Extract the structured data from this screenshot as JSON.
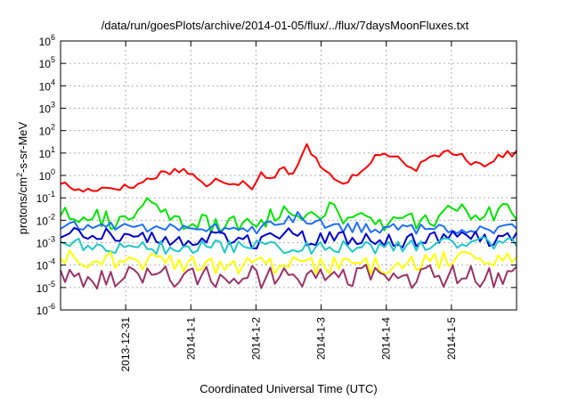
{
  "chart_data": {
    "type": "line",
    "title": "/data/run/goesPlots/archive/2014-01-05/flux/../flux/7daysMoonFluxes.txt",
    "xlabel": "Coordinated Universal Time (UTC)",
    "ylabel": "protons/cm2-s-sr-MeV",
    "ylabel_parts": {
      "pre": "protons/cm",
      "sup": "2",
      "post": "-s-sr-MeV"
    },
    "yscale": "log",
    "ylim_exp": [
      -6,
      6
    ],
    "y_tick_exponents": [
      -6,
      -5,
      -4,
      -3,
      -2,
      -1,
      0,
      1,
      2,
      3,
      4,
      5,
      6
    ],
    "y_tick_base": "10",
    "xlim_days": [
      0,
      7
    ],
    "x_ticks": [
      {
        "label": "2013-12-31",
        "day": 1
      },
      {
        "label": "2014-1-1",
        "day": 2
      },
      {
        "label": "2014-1-2",
        "day": 3
      },
      {
        "label": "2014-1-3",
        "day": 4
      },
      {
        "label": "2014-1-4",
        "day": 5
      },
      {
        "label": "2014-1-5",
        "day": 6
      }
    ],
    "grid": true,
    "series": [
      {
        "color": "#ff0000",
        "style": "spiky",
        "anchors": [
          [
            0,
            0.5
          ],
          [
            0.15,
            0.3
          ],
          [
            0.3,
            0.2
          ],
          [
            0.5,
            0.25
          ],
          [
            0.8,
            0.3
          ],
          [
            1.1,
            0.3
          ],
          [
            1.4,
            0.8
          ],
          [
            1.6,
            1.5
          ],
          [
            1.9,
            1.8
          ],
          [
            2.1,
            0.8
          ],
          [
            2.25,
            0.25
          ],
          [
            2.4,
            0.7
          ],
          [
            2.6,
            0.5
          ],
          [
            2.85,
            0.5
          ],
          [
            2.95,
            0.3
          ],
          [
            3.1,
            2
          ],
          [
            3.2,
            0.5
          ],
          [
            3.4,
            3
          ],
          [
            3.55,
            0.8
          ],
          [
            3.7,
            5
          ],
          [
            3.75,
            40
          ],
          [
            3.85,
            8
          ],
          [
            4,
            3
          ],
          [
            4.1,
            1.5
          ],
          [
            4.3,
            0.5
          ],
          [
            4.5,
            0.8
          ],
          [
            4.7,
            2
          ],
          [
            4.85,
            10
          ],
          [
            5.05,
            8
          ],
          [
            5.25,
            4
          ],
          [
            5.35,
            1.5
          ],
          [
            5.55,
            3
          ],
          [
            5.75,
            8
          ],
          [
            5.95,
            12
          ],
          [
            6.15,
            10
          ],
          [
            6.3,
            4
          ],
          [
            6.5,
            3
          ],
          [
            6.75,
            8
          ],
          [
            7,
            10
          ]
        ],
        "spike": 0.15
      },
      {
        "color": "#00e600",
        "style": "spiky",
        "anchors": [
          [
            0,
            0.025
          ],
          [
            0.5,
            0.02
          ],
          [
            0.7,
            0.01
          ],
          [
            1.0,
            0.008
          ],
          [
            1.3,
            0.05
          ],
          [
            1.6,
            0.015
          ],
          [
            2.0,
            0.007
          ],
          [
            2.4,
            0.006
          ],
          [
            2.8,
            0.006
          ],
          [
            3.2,
            0.015
          ],
          [
            3.6,
            0.02
          ],
          [
            4,
            0.03
          ],
          [
            4.4,
            0.015
          ],
          [
            4.8,
            0.008
          ],
          [
            5.2,
            0.008
          ],
          [
            5.6,
            0.012
          ],
          [
            6,
            0.02
          ],
          [
            6.4,
            0.02
          ],
          [
            7,
            0.02
          ]
        ],
        "spike": 0.45
      },
      {
        "color": "#1e6eff",
        "style": "spiky",
        "anchors": [
          [
            0,
            0.005
          ],
          [
            0.3,
            0.005
          ],
          [
            0.5,
            0.006
          ],
          [
            1.5,
            0.005
          ],
          [
            2.2,
            0.005
          ],
          [
            2.6,
            0.004
          ],
          [
            3.0,
            0.004
          ],
          [
            3.4,
            0.008
          ],
          [
            3.6,
            0.015
          ],
          [
            4,
            0.006
          ],
          [
            4.4,
            0.005
          ],
          [
            4.8,
            0.005
          ],
          [
            5.2,
            0.004
          ],
          [
            5.6,
            0.004
          ],
          [
            6,
            0.004
          ],
          [
            6.5,
            0.004
          ],
          [
            7,
            0.004
          ]
        ],
        "spike": 0.25
      },
      {
        "color": "#0000cc",
        "style": "spiky",
        "anchors": [
          [
            0,
            0.002
          ],
          [
            0.3,
            0.003
          ],
          [
            0.5,
            0.003
          ],
          [
            1,
            0.002
          ],
          [
            1.5,
            0.0015
          ],
          [
            2,
            0.0012
          ],
          [
            2.5,
            0.0015
          ],
          [
            3,
            0.0012
          ],
          [
            3.5,
            0.002
          ],
          [
            4,
            0.0013
          ],
          [
            4.5,
            0.0015
          ],
          [
            5,
            0.0015
          ],
          [
            5.5,
            0.0012
          ],
          [
            6,
            0.0015
          ],
          [
            6.5,
            0.0015
          ],
          [
            7,
            0.0015
          ]
        ],
        "spike": 0.35
      },
      {
        "color": "#20c8c8",
        "style": "spiky",
        "anchors": [
          [
            0,
            0.0012
          ],
          [
            0.3,
            0.0008
          ],
          [
            0.6,
            0.0006
          ],
          [
            1,
            0.0006
          ],
          [
            1.5,
            0.0006
          ],
          [
            2,
            0.0006
          ],
          [
            2.5,
            0.0007
          ],
          [
            3,
            0.0007
          ],
          [
            3.5,
            0.0006
          ],
          [
            4,
            0.0006
          ],
          [
            4.5,
            0.0007
          ],
          [
            5,
            0.0006
          ],
          [
            5.5,
            0.0007
          ],
          [
            6,
            0.001
          ],
          [
            6.5,
            0.0009
          ],
          [
            7,
            0.001
          ]
        ],
        "spike": 0.3
      },
      {
        "color": "#ffff00",
        "style": "spiky",
        "anchors": [
          [
            0,
            0.0002
          ],
          [
            0.5,
            0.0002
          ],
          [
            1,
            0.00015
          ],
          [
            1.5,
            0.00015
          ],
          [
            2,
            0.0001
          ],
          [
            2.5,
            0.0001
          ],
          [
            3,
            0.0001
          ],
          [
            3.5,
            0.0001
          ],
          [
            4,
            0.0001
          ],
          [
            4.5,
            0.0001
          ],
          [
            5,
            0.0001
          ],
          [
            5.5,
            0.0001
          ],
          [
            6,
            0.0002
          ],
          [
            6.5,
            0.0002
          ],
          [
            7,
            0.0002
          ]
        ],
        "spike": 0.4
      },
      {
        "color": "#993366",
        "style": "spiky",
        "anchors": [
          [
            0,
            5e-05
          ],
          [
            0.5,
            3e-05
          ],
          [
            1,
            4e-05
          ],
          [
            1.5,
            4e-05
          ],
          [
            2,
            3e-05
          ],
          [
            2.5,
            3e-05
          ],
          [
            3,
            3e-05
          ],
          [
            3.5,
            3e-05
          ],
          [
            4,
            3e-05
          ],
          [
            4.5,
            3e-05
          ],
          [
            5,
            4e-05
          ],
          [
            5.5,
            3e-05
          ],
          [
            6,
            4e-05
          ],
          [
            6.5,
            3e-05
          ],
          [
            7,
            3e-05
          ]
        ],
        "spike": 0.55
      }
    ]
  }
}
